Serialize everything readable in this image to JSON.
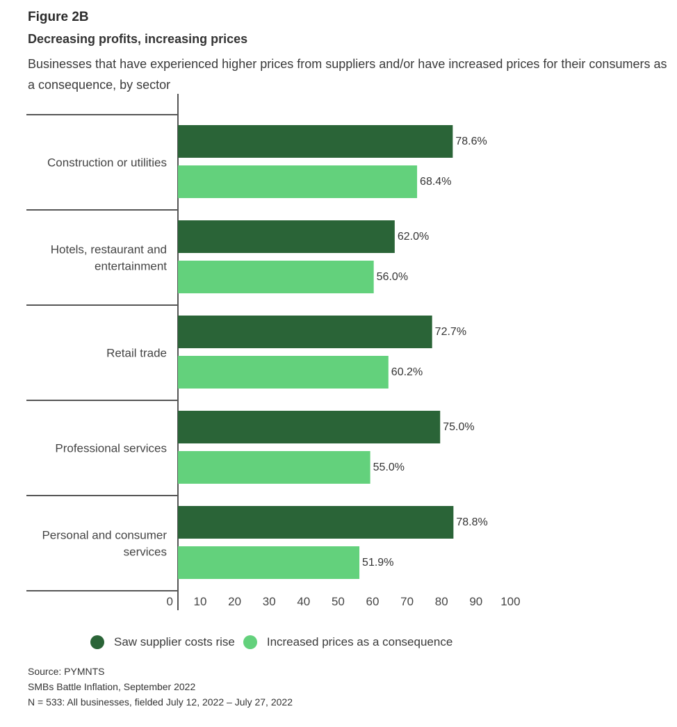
{
  "figure_label": "Figure 2B",
  "colors": {
    "series1": "#2a6437",
    "series2": "#63d17c",
    "axis": "#555555"
  },
  "chart_data": {
    "type": "bar",
    "orientation": "horizontal",
    "title": "Decreasing profits, increasing prices",
    "subtitle": "Businesses that have experienced higher prices from suppliers and/or have increased prices for their consumers as a consequence, by sector",
    "categories": [
      "Construction or utilities",
      "Hotels, restaurant and entertainment",
      "Retail trade",
      "Professional services",
      "Personal and consumer services"
    ],
    "category_lines": [
      [
        "Construction or utilities"
      ],
      [
        "Hotels, restaurant and",
        "entertainment"
      ],
      [
        "Retail trade"
      ],
      [
        "Professional services"
      ],
      [
        "Personal and consumer",
        "services"
      ]
    ],
    "series": [
      {
        "name": "Saw supplier costs rise",
        "values": [
          78.6,
          62.0,
          72.7,
          75.0,
          78.8
        ],
        "labels": [
          "78.6%",
          "62.0%",
          "72.7%",
          "75.0%",
          "78.8%"
        ]
      },
      {
        "name": "Increased prices as a consequence",
        "values": [
          68.4,
          56.0,
          60.2,
          55.0,
          51.9
        ],
        "labels": [
          "68.4%",
          "56.0%",
          "60.2%",
          "55.0%",
          "51.9%"
        ]
      }
    ],
    "xlim": [
      0,
      100
    ],
    "xticks": [
      "0",
      "10",
      "20",
      "30",
      "40",
      "50",
      "60",
      "70",
      "80",
      "90",
      "100"
    ],
    "xlabel": "",
    "ylabel": "",
    "grid": false,
    "legend": "bottom"
  },
  "footer": {
    "source": "Source: PYMNTS",
    "report": "SMBs Battle Inflation, September 2022",
    "sample": "N = 533: All businesses, fielded July 12, 2022 – July 27, 2022"
  }
}
